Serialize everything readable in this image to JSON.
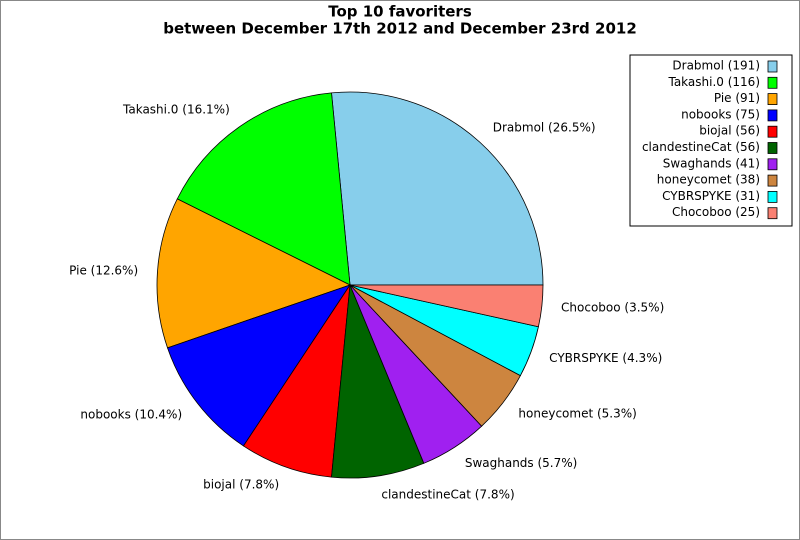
{
  "chart_data": {
    "type": "pie",
    "title": "Top 10 favoriters",
    "subtitle": "between December 17th 2012 and December 23rd 2012",
    "values": [
      191,
      116,
      91,
      75,
      56,
      56,
      41,
      38,
      31,
      25
    ],
    "labels": [
      "Drabmol (26.5%)",
      "Takashi.0 (16.1%)",
      "Pie (12.6%)",
      "nobooks (10.4%)",
      "biojal (7.8%)",
      "clandestineCat (7.8%)",
      "Swaghands (5.7%)",
      "honeycomet (5.3%)",
      "CYBRSPYKE (4.3%)",
      "Chocoboo (3.5%)"
    ],
    "legend_labels": [
      "Drabmol (191)",
      "Takashi.0 (116)",
      "Pie (91)",
      "nobooks (75)",
      "biojal (56)",
      "clandestineCat (56)",
      "Swaghands (41)",
      "honeycomet (38)",
      "CYBRSPYKE (31)",
      "Chocoboo (25)"
    ],
    "colors": [
      "#87ceeb",
      "#00ff00",
      "#ffa500",
      "#0000ff",
      "#ff0000",
      "#006400",
      "#a020f0",
      "#cd853f",
      "#00ffff",
      "#fa8072"
    ],
    "legend": "upper right"
  }
}
